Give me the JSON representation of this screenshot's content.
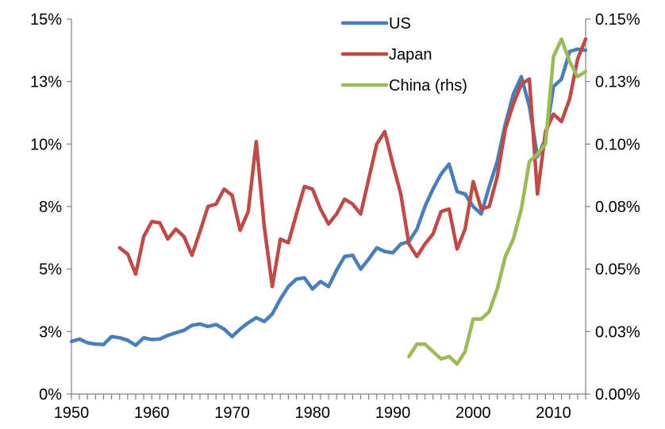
{
  "chart_data": {
    "type": "line",
    "title": "",
    "xlabel": "",
    "ylabel": "",
    "grid": false,
    "legend_position": "top-right",
    "xlim": [
      1950,
      2014
    ],
    "ylim": [
      0,
      15
    ],
    "y2lim": [
      0,
      0.15
    ],
    "x_ticks": [
      1950,
      1960,
      1970,
      1980,
      1990,
      2000,
      2010
    ],
    "x_tick_labels": [
      "1950",
      "1960",
      "1970",
      "1980",
      "1990",
      "2000",
      "2010"
    ],
    "y_ticks": [
      0,
      2.5,
      5,
      7.5,
      10,
      12.5,
      15
    ],
    "y_tick_labels": [
      "0%",
      "3%",
      "5%",
      "8%",
      "10%",
      "13%",
      "15%"
    ],
    "y2_ticks": [
      0,
      0.025,
      0.05,
      0.075,
      0.1,
      0.125,
      0.15
    ],
    "y2_tick_labels": [
      "0.00%",
      "0.03%",
      "0.05%",
      "0.08%",
      "0.10%",
      "0.13%",
      "0.15%"
    ],
    "series": [
      {
        "name": "US",
        "axis": "left",
        "color": "#4a7ebb",
        "x": [
          1950,
          1951,
          1952,
          1953,
          1954,
          1955,
          1956,
          1957,
          1958,
          1959,
          1960,
          1961,
          1962,
          1963,
          1964,
          1965,
          1966,
          1967,
          1968,
          1969,
          1970,
          1971,
          1972,
          1973,
          1974,
          1975,
          1976,
          1977,
          1978,
          1979,
          1980,
          1981,
          1982,
          1983,
          1984,
          1985,
          1986,
          1987,
          1988,
          1989,
          1990,
          1991,
          1992,
          1993,
          1994,
          1995,
          1996,
          1997,
          1998,
          1999,
          2000,
          2001,
          2002,
          2003,
          2004,
          2005,
          2006,
          2007,
          2008,
          2009,
          2010,
          2011,
          2012,
          2013,
          2014
        ],
        "values": [
          2.1,
          2.2,
          2.05,
          2.0,
          1.98,
          2.3,
          2.25,
          2.15,
          1.95,
          2.25,
          2.18,
          2.2,
          2.35,
          2.45,
          2.55,
          2.75,
          2.8,
          2.7,
          2.78,
          2.6,
          2.3,
          2.6,
          2.85,
          3.05,
          2.9,
          3.2,
          3.8,
          4.3,
          4.6,
          4.65,
          4.2,
          4.5,
          4.3,
          4.95,
          5.5,
          5.55,
          5.0,
          5.4,
          5.85,
          5.7,
          5.65,
          6.0,
          6.1,
          6.6,
          7.5,
          8.2,
          8.8,
          9.2,
          8.1,
          8.0,
          7.5,
          7.2,
          8.3,
          9.3,
          10.8,
          12.0,
          12.7,
          11.5,
          9.5,
          10.2,
          12.3,
          12.6,
          13.7,
          13.8,
          13.75
        ]
      },
      {
        "name": "Japan",
        "axis": "left",
        "color": "#be4b48",
        "x": [
          1956,
          1957,
          1958,
          1959,
          1960,
          1961,
          1962,
          1963,
          1964,
          1965,
          1966,
          1967,
          1968,
          1969,
          1970,
          1971,
          1972,
          1973,
          1974,
          1975,
          1976,
          1977,
          1978,
          1979,
          1980,
          1981,
          1982,
          1983,
          1984,
          1985,
          1986,
          1987,
          1988,
          1989,
          1990,
          1991,
          1992,
          1993,
          1994,
          1995,
          1996,
          1997,
          1998,
          1999,
          2000,
          2001,
          2002,
          2003,
          2004,
          2005,
          2006,
          2007,
          2008,
          2009,
          2010,
          2011,
          2012,
          2013,
          2014
        ],
        "values": [
          5.85,
          5.6,
          4.8,
          6.3,
          6.9,
          6.85,
          6.2,
          6.6,
          6.3,
          5.55,
          6.5,
          7.5,
          7.6,
          8.2,
          7.95,
          6.55,
          7.3,
          10.1,
          6.7,
          4.3,
          6.2,
          6.05,
          7.2,
          8.3,
          8.2,
          7.4,
          6.8,
          7.2,
          7.8,
          7.6,
          7.2,
          8.6,
          10.0,
          10.5,
          9.2,
          8.0,
          6.0,
          5.5,
          6.0,
          6.4,
          7.3,
          7.4,
          5.8,
          6.6,
          8.5,
          7.4,
          7.5,
          8.7,
          10.6,
          11.6,
          12.4,
          12.6,
          8.0,
          10.5,
          11.2,
          10.9,
          11.8,
          13.4,
          14.2
        ]
      },
      {
        "name": "China (rhs)",
        "axis": "right",
        "color": "#9bbb59",
        "x": [
          1992,
          1993,
          1994,
          1995,
          1996,
          1997,
          1998,
          1999,
          2000,
          2001,
          2002,
          2003,
          2004,
          2005,
          2006,
          2007,
          2008,
          2009,
          2010,
          2011,
          2012,
          2013,
          2014
        ],
        "values": [
          0.015,
          0.02,
          0.02,
          0.017,
          0.014,
          0.015,
          0.012,
          0.017,
          0.03,
          0.03,
          0.033,
          0.042,
          0.055,
          0.062,
          0.074,
          0.093,
          0.096,
          0.1,
          0.135,
          0.142,
          0.133,
          0.127,
          0.129
        ]
      }
    ]
  },
  "legend": [
    {
      "label": "US",
      "color": "#4a7ebb"
    },
    {
      "label": "Japan",
      "color": "#be4b48"
    },
    {
      "label": "China (rhs)",
      "color": "#9bbb59"
    }
  ]
}
